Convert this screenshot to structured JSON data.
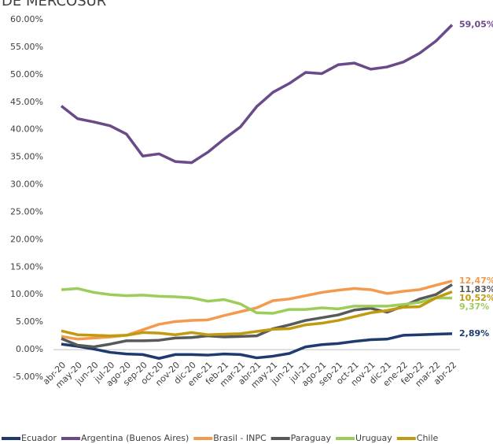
{
  "chart_data": {
    "type": "line",
    "title": "DE MERCOSUR",
    "categories": [
      "abr-20",
      "may-20",
      "jun-20",
      "jul-20",
      "ago-20",
      "sep-20",
      "oct-20",
      "nov-20",
      "dic-20",
      "ene-21",
      "feb-21",
      "mar-21",
      "abr-21",
      "may-21",
      "jun-21",
      "jul-21",
      "ago-21",
      "sep-21",
      "oct-21",
      "nov-21",
      "dic-21",
      "ene-22",
      "feb-22",
      "mar-22",
      "abr-22"
    ],
    "series": [
      {
        "name": "Ecuador",
        "color": "#1f3a6e",
        "values": [
          1.0,
          0.6,
          0.1,
          -0.5,
          -0.8,
          -0.9,
          -1.6,
          -0.9,
          -0.9,
          -1.0,
          -0.8,
          -0.9,
          -1.5,
          -1.2,
          -0.7,
          0.5,
          0.9,
          1.1,
          1.5,
          1.8,
          1.9,
          2.6,
          2.7,
          2.8,
          2.89
        ],
        "end_label": "2,89%"
      },
      {
        "name": "Argentina (Buenos Aires)",
        "color": "#6b4a8a",
        "values": [
          44.3,
          42.0,
          41.4,
          40.7,
          39.2,
          35.2,
          35.6,
          34.2,
          34.0,
          35.9,
          38.3,
          40.5,
          44.2,
          46.8,
          48.4,
          50.4,
          50.2,
          51.8,
          52.1,
          51.0,
          51.4,
          52.3,
          53.9,
          56.1,
          59.05
        ],
        "end_label": "59,05%"
      },
      {
        "name": "Brasil - INPC",
        "color": "#f39a4f",
        "values": [
          2.4,
          1.9,
          2.1,
          2.3,
          2.6,
          3.6,
          4.6,
          5.1,
          5.3,
          5.4,
          6.2,
          6.9,
          7.6,
          8.9,
          9.2,
          9.8,
          10.4,
          10.8,
          11.1,
          10.9,
          10.2,
          10.6,
          10.9,
          11.7,
          12.47
        ],
        "end_label": "12,47%"
      },
      {
        "name": "Paraguay",
        "color": "#595959",
        "values": [
          2.0,
          0.8,
          0.5,
          1.0,
          1.6,
          1.6,
          1.7,
          2.1,
          2.2,
          2.5,
          2.3,
          2.4,
          2.5,
          3.8,
          4.5,
          5.3,
          5.8,
          6.3,
          7.2,
          7.5,
          6.8,
          7.9,
          9.2,
          10.0,
          11.83
        ],
        "end_label": "11,83%"
      },
      {
        "name": "Uruguay",
        "color": "#9ccc5a",
        "values": [
          10.9,
          11.1,
          10.4,
          10.0,
          9.8,
          9.9,
          9.7,
          9.6,
          9.4,
          8.8,
          9.1,
          8.3,
          6.7,
          6.6,
          7.3,
          7.3,
          7.6,
          7.4,
          7.9,
          7.9,
          7.9,
          8.2,
          8.6,
          9.4,
          9.37
        ],
        "end_label": "9,37%"
      },
      {
        "name": "Chile",
        "color": "#c09a10",
        "values": [
          3.4,
          2.7,
          2.6,
          2.5,
          2.6,
          3.1,
          3.0,
          2.7,
          3.1,
          2.7,
          2.8,
          2.9,
          3.3,
          3.7,
          3.8,
          4.5,
          4.8,
          5.3,
          6.0,
          6.7,
          7.1,
          7.7,
          7.8,
          9.4,
          10.52
        ],
        "end_label": "10,52%"
      }
    ],
    "ylim": [
      -5,
      60
    ],
    "yticks": [
      {
        "value": -5,
        "label": "-5.00%"
      },
      {
        "value": 0,
        "label": "0.00%"
      },
      {
        "value": 5,
        "label": "5.00%"
      },
      {
        "value": 10,
        "label": "10.00%"
      },
      {
        "value": 15,
        "label": "15.00%"
      },
      {
        "value": 20,
        "label": "20.00%"
      },
      {
        "value": 25,
        "label": "25.00%"
      },
      {
        "value": 30,
        "label": "30.00%"
      },
      {
        "value": 35,
        "label": "35.00%"
      },
      {
        "value": 40,
        "label": "40.00%"
      },
      {
        "value": 45,
        "label": "45.00%"
      },
      {
        "value": 50,
        "label": "50.00%"
      },
      {
        "value": 55,
        "label": "55.00%"
      },
      {
        "value": 60,
        "label": "60.00%"
      }
    ],
    "legend": "bottom",
    "grid": false
  }
}
